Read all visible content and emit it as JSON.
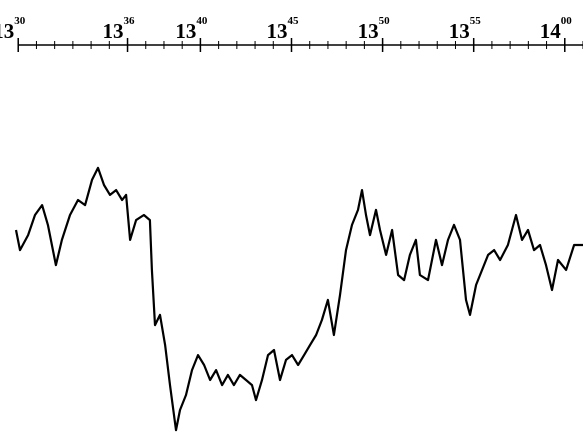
{
  "chart_data": {
    "type": "line",
    "xlim": [
      809,
      841
    ],
    "ylim": [
      0,
      100
    ],
    "xticks": [
      {
        "value": 810,
        "label": "13",
        "sup": "30"
      },
      {
        "value": 816,
        "label": "13",
        "sup": "36"
      },
      {
        "value": 820,
        "label": "13",
        "sup": "40"
      },
      {
        "value": 825,
        "label": "13",
        "sup": "45"
      },
      {
        "value": 830,
        "label": "13",
        "sup": "50"
      },
      {
        "value": 835,
        "label": "13",
        "sup": "55"
      },
      {
        "value": 840,
        "label": "14",
        "sup": "00"
      }
    ],
    "xticks_minor": [
      810,
      811,
      812,
      813,
      814,
      815,
      816,
      817,
      818,
      819,
      820,
      821,
      822,
      823,
      824,
      825,
      826,
      827,
      828,
      829,
      830,
      831,
      832,
      833,
      834,
      835,
      836,
      837,
      838,
      839,
      840,
      841
    ],
    "color": "#000000",
    "x": [
      809.88,
      810.1,
      810.54,
      810.92,
      811.31,
      811.63,
      812.07,
      812.4,
      812.84,
      813.28,
      813.67,
      814.05,
      814.38,
      814.71,
      815.04,
      815.37,
      815.7,
      815.92,
      816.14,
      816.47,
      816.9,
      817.23,
      817.34,
      817.51,
      817.78,
      818.06,
      818.33,
      818.66,
      818.88,
      819.21,
      819.54,
      819.87,
      820.2,
      820.53,
      820.86,
      821.19,
      821.51,
      821.84,
      822.17,
      822.5,
      822.83,
      823.05,
      823.38,
      823.71,
      824.04,
      824.37,
      824.7,
      825.03,
      825.36,
      825.69,
      826.02,
      826.35,
      826.67,
      827.0,
      827.33,
      827.66,
      827.99,
      828.32,
      828.65,
      828.87,
      829.09,
      829.31,
      829.64,
      829.86,
      830.19,
      830.52,
      830.85,
      831.18,
      831.5,
      831.83,
      832.05,
      832.49,
      832.93,
      833.26,
      833.59,
      833.92,
      834.25,
      834.58,
      834.8,
      835.13,
      835.46,
      835.79,
      836.12,
      836.45,
      836.88,
      837.32,
      837.65,
      837.98,
      838.31,
      838.64,
      838.97,
      839.3,
      839.63,
      840.07,
      840.51,
      841.0
    ],
    "values": [
      70,
      63.3,
      68.3,
      75,
      78.3,
      71.7,
      58.3,
      66.7,
      75,
      80,
      78.3,
      86.7,
      90.7,
      85,
      81.7,
      83.3,
      80,
      81.7,
      66.7,
      73.3,
      75,
      73.3,
      56.7,
      38.3,
      41.7,
      31.7,
      18.3,
      3.3,
      10,
      15,
      23.3,
      28.3,
      25,
      20,
      23.3,
      18.3,
      21.7,
      18.3,
      21.7,
      20,
      18.3,
      13.3,
      20,
      28.3,
      30,
      20,
      26.7,
      28.3,
      25,
      28.3,
      31.7,
      35,
      40,
      46.7,
      35,
      48.3,
      63.3,
      71.7,
      76.7,
      83.3,
      75,
      68.3,
      76.7,
      70,
      61.7,
      70,
      55,
      53.3,
      61.7,
      66.7,
      55,
      53.3,
      66.7,
      58.3,
      66.7,
      71.7,
      66.7,
      46.7,
      41.7,
      51.7,
      56.7,
      61.7,
      63.3,
      60,
      65,
      75,
      66.7,
      70,
      63.3,
      65,
      58.3,
      50,
      60,
      56.7,
      65,
      65
    ]
  }
}
